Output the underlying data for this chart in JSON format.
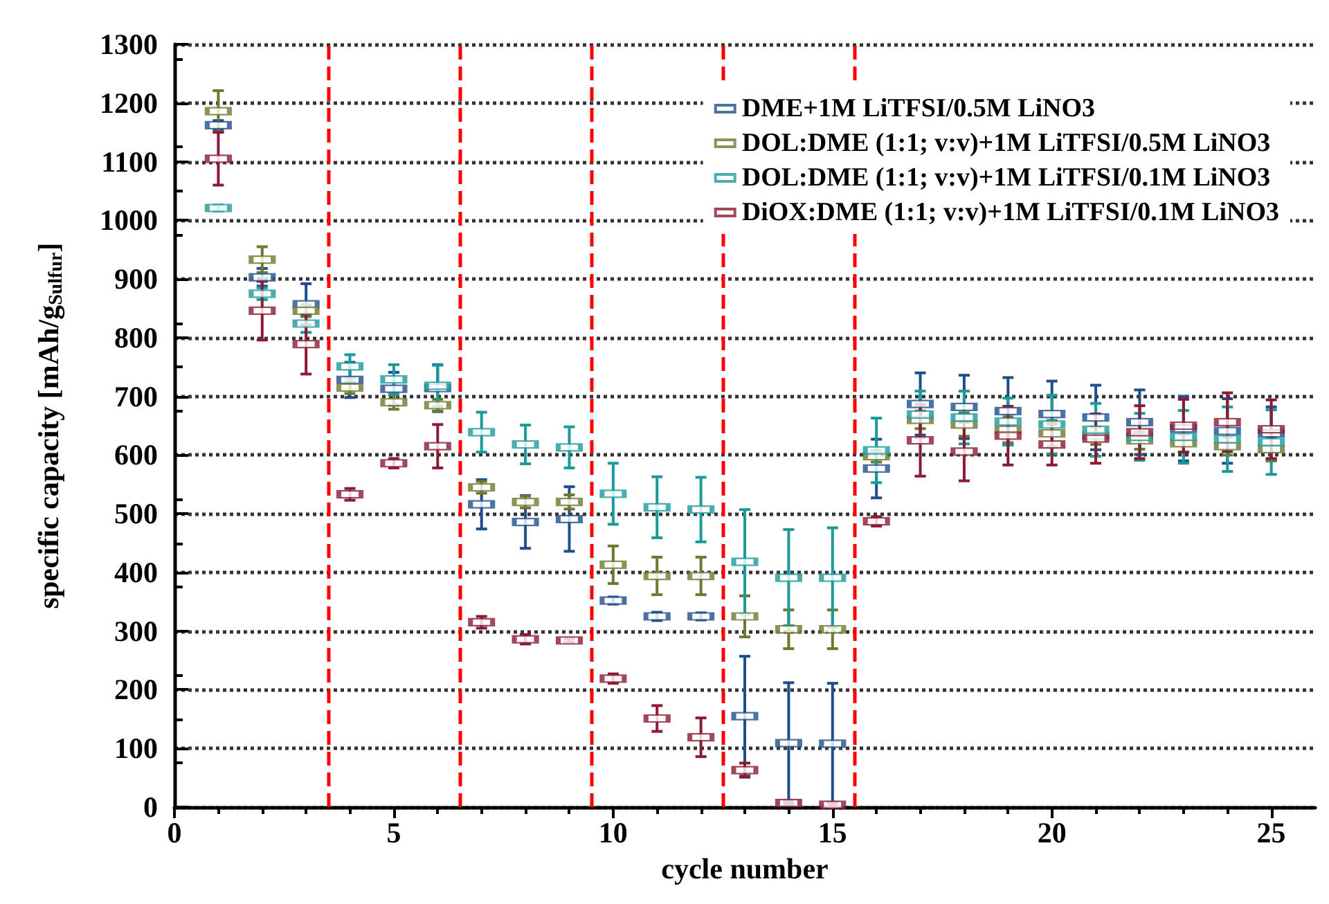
{
  "chart_data": {
    "type": "scatter",
    "xlabel": "cycle number",
    "ylabel": "specific capacity [mAh/g$_{Sulfur}$]",
    "x": [
      1,
      2,
      3,
      4,
      5,
      6,
      7,
      8,
      9,
      10,
      11,
      12,
      13,
      14,
      15,
      16,
      17,
      18,
      19,
      20,
      21,
      22,
      23,
      24,
      25
    ],
    "xlim": [
      0,
      26
    ],
    "xticks": [
      0,
      5,
      10,
      15,
      20,
      25
    ],
    "ylim": [
      0,
      1300
    ],
    "yticks": [
      0,
      100,
      200,
      300,
      400,
      500,
      600,
      700,
      800,
      900,
      1000,
      1100,
      1200,
      1300
    ],
    "grid": "y",
    "legend": "top right",
    "marker": "square",
    "series": [
      {
        "name": "DME+1M LiTFSI/0.5M LiNO3",
        "color": "#1f4e8c",
        "values": [
          1162,
          903,
          857,
          728,
          713,
          714,
          516,
          486,
          491,
          352,
          325,
          325,
          155,
          109,
          108,
          577,
          687,
          682,
          675,
          670,
          664,
          656,
          645,
          641,
          637
        ],
        "errors": [
          8,
          15,
          35,
          30,
          28,
          40,
          42,
          45,
          55,
          6,
          7,
          6,
          102,
          103,
          103,
          50,
          53,
          54,
          57,
          56,
          55,
          55,
          55,
          55,
          45
        ]
      },
      {
        "name": "DOL:DME (1:1; v:v)+1M LiTFSI/0.5M LiNO3",
        "color": "#6b7a2e",
        "values": [
          1186,
          933,
          846,
          715,
          690,
          685,
          545,
          520,
          520,
          413,
          394,
          394,
          325,
          303,
          303,
          598,
          660,
          652,
          643,
          637,
          633,
          625,
          620,
          615,
          610
        ],
        "errors": [
          35,
          22,
          10,
          10,
          12,
          10,
          10,
          10,
          12,
          32,
          32,
          32,
          35,
          33,
          33,
          10,
          15,
          20,
          22,
          22,
          15,
          15,
          15,
          15,
          20
        ]
      },
      {
        "name": "DOL:DME (1:1; v:v)+1M LiTFSI/0.1M LiNO3",
        "color": "#1a9a9a",
        "values": [
          1021,
          875,
          824,
          751,
          729,
          718,
          639,
          618,
          613,
          534,
          511,
          507,
          418,
          391,
          391,
          608,
          669,
          664,
          657,
          652,
          643,
          631,
          631,
          627,
          622
        ],
        "errors": [
          5,
          10,
          15,
          20,
          25,
          35,
          34,
          33,
          35,
          52,
          52,
          55,
          89,
          82,
          85,
          55,
          40,
          45,
          40,
          50,
          45,
          40,
          45,
          55,
          55
        ]
      },
      {
        "name": "DiOX:DME (1:1; v:v)+1M LiTFSI/0.1M LiNO3",
        "color": "#8b1a35",
        "values": [
          1105,
          846,
          789,
          533,
          586,
          615,
          315,
          286,
          284,
          219,
          151,
          119,
          63,
          7,
          4,
          487,
          625,
          606,
          633,
          618,
          628,
          639,
          650,
          656,
          644
        ],
        "errors": [
          45,
          50,
          51,
          10,
          8,
          37,
          10,
          8,
          3,
          8,
          22,
          33,
          12,
          4,
          4,
          8,
          61,
          50,
          50,
          35,
          42,
          45,
          45,
          50,
          50
        ]
      }
    ],
    "ref_lines": [
      {
        "axis": "x",
        "value": 3.5,
        "color": "#ff0000",
        "line_style": "dashed"
      },
      {
        "axis": "x",
        "value": 6.5,
        "color": "#ff0000",
        "line_style": "dashed"
      },
      {
        "axis": "x",
        "value": 9.5,
        "color": "#ff0000",
        "line_style": "dashed"
      },
      {
        "axis": "x",
        "value": 12.5,
        "color": "#ff0000",
        "line_style": "dashed"
      },
      {
        "axis": "x",
        "value": 15.5,
        "color": "#ff0000",
        "line_style": "dashed"
      }
    ]
  }
}
